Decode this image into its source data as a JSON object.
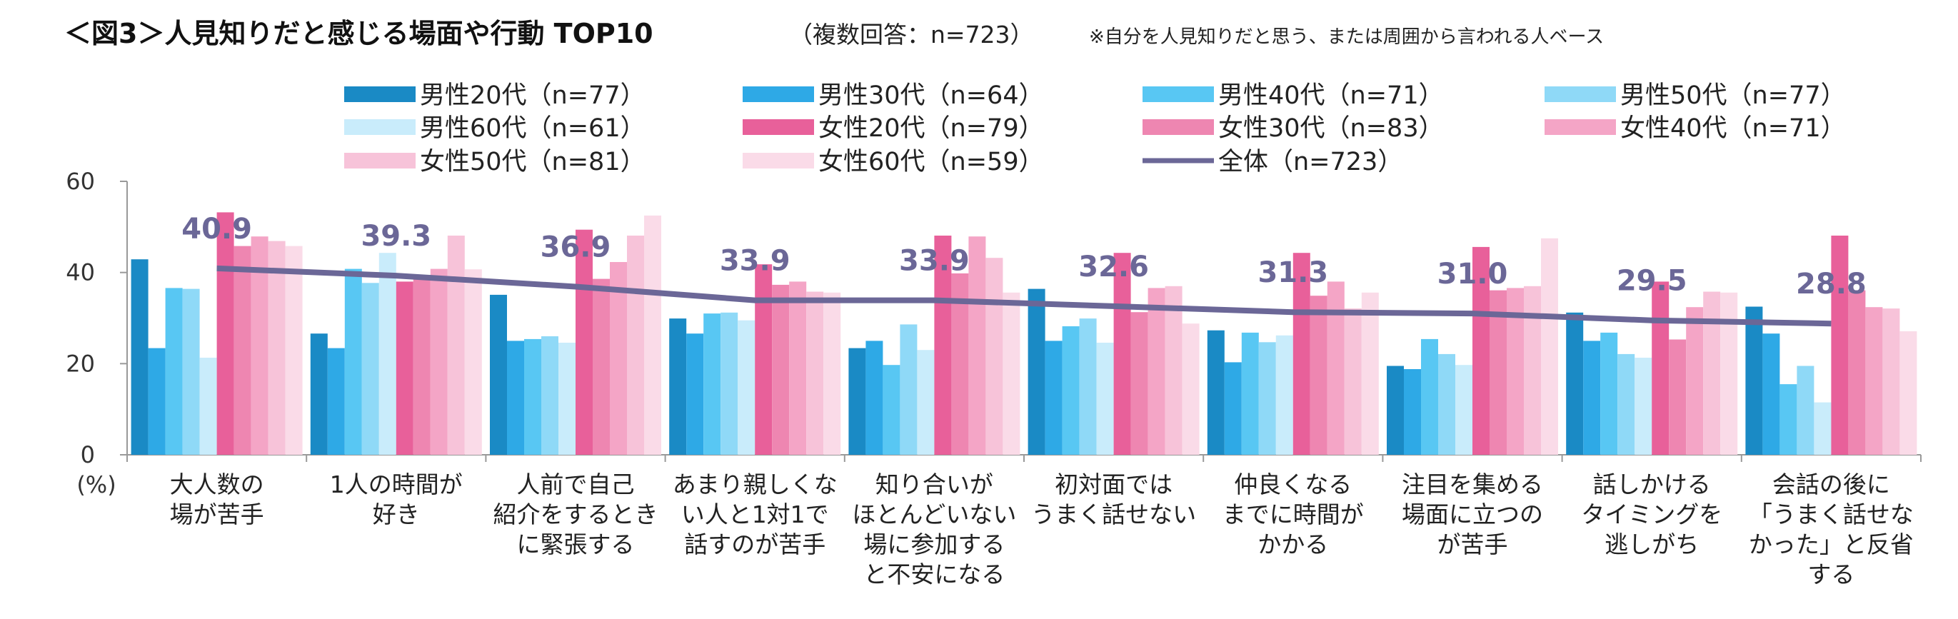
{
  "title": {
    "main": "＜図3＞人見知りだと感じる場面や行動 TOP10",
    "sub": "（複数回答：n=723）",
    "note": "※自分を人見知りだと思う、または周囲から言われる人ベース"
  },
  "chart_data": {
    "type": "bar",
    "ylabel": "(%)",
    "ylim": [
      0,
      60
    ],
    "yticks": [
      "0",
      "20",
      "40",
      "60"
    ],
    "grid": false,
    "legend_position": "top",
    "categories": [
      [
        "大人数の",
        "場が苦手"
      ],
      [
        "1人の時間が",
        "好き"
      ],
      [
        "人前で自己",
        "紹介をするとき",
        "に緊張する"
      ],
      [
        "あまり親しくな",
        "い人と1対1で",
        "話すのが苦手"
      ],
      [
        "知り合いが",
        "ほとんどいない",
        "場に参加する",
        "と不安になる"
      ],
      [
        "初対面では",
        "うまく話せない"
      ],
      [
        "仲良くなる",
        "までに時間が",
        "かかる"
      ],
      [
        "注目を集める",
        "場面に立つの",
        "が苦手"
      ],
      [
        "話しかける",
        "タイミングを",
        "逃しがち"
      ],
      [
        "会話の後に",
        "「うまく話せな",
        "かった」と反省",
        "する"
      ]
    ],
    "series": [
      {
        "name": "男性20代（n=77）",
        "color": "#1a8ac5",
        "values": [
          42.9,
          26.6,
          35.1,
          29.9,
          23.4,
          36.4,
          27.3,
          19.5,
          31.2,
          32.5
        ]
      },
      {
        "name": "男性30代（n=64）",
        "color": "#2ea9e6",
        "values": [
          23.4,
          23.4,
          25.0,
          26.6,
          25.0,
          25.0,
          20.3,
          18.8,
          25.0,
          26.6
        ]
      },
      {
        "name": "男性40代（n=71）",
        "color": "#58c7f3",
        "values": [
          36.6,
          40.8,
          25.4,
          31.0,
          19.7,
          28.2,
          26.8,
          25.4,
          26.8,
          15.5
        ]
      },
      {
        "name": "男性50代（n=77）",
        "color": "#8fd9f7",
        "values": [
          36.4,
          37.7,
          26.0,
          31.2,
          28.6,
          29.9,
          24.7,
          22.1,
          22.1,
          19.5
        ]
      },
      {
        "name": "男性60代（n=61）",
        "color": "#c9ecfb",
        "values": [
          21.3,
          44.3,
          24.6,
          29.5,
          23.0,
          24.6,
          26.2,
          19.7,
          21.3,
          11.5
        ]
      },
      {
        "name": "女性20代（n=79）",
        "color": "#e8609a",
        "values": [
          53.2,
          38.0,
          49.4,
          41.8,
          48.1,
          44.3,
          44.3,
          45.6,
          38.0,
          48.1
        ]
      },
      {
        "name": "女性30代（n=83）",
        "color": "#ee86b1",
        "values": [
          45.8,
          38.6,
          38.6,
          37.3,
          39.8,
          31.3,
          34.9,
          36.1,
          25.3,
          36.1
        ]
      },
      {
        "name": "女性40代（n=71）",
        "color": "#f4a5c6",
        "values": [
          47.9,
          40.8,
          42.3,
          38.0,
          47.9,
          36.6,
          38.0,
          36.6,
          32.4,
          32.4
        ]
      },
      {
        "name": "女性50代（n=81）",
        "color": "#f7c3d9",
        "values": [
          46.9,
          48.1,
          48.1,
          35.8,
          43.2,
          37.0,
          32.1,
          37.0,
          35.8,
          32.1
        ]
      },
      {
        "name": "女性60代（n=59）",
        "color": "#fadbe8",
        "values": [
          45.8,
          40.7,
          52.5,
          35.6,
          35.6,
          28.8,
          35.6,
          47.5,
          35.6,
          27.1
        ]
      }
    ],
    "line": {
      "name": "全体（n=723）",
      "color": "#6b6797",
      "values": [
        40.9,
        39.3,
        36.9,
        33.9,
        33.9,
        32.6,
        31.3,
        31.0,
        29.5,
        28.8
      ],
      "labels": [
        "40.9",
        "39.3",
        "36.9",
        "33.9",
        "33.9",
        "32.6",
        "31.3",
        "31.0",
        "29.5",
        "28.8"
      ]
    }
  }
}
